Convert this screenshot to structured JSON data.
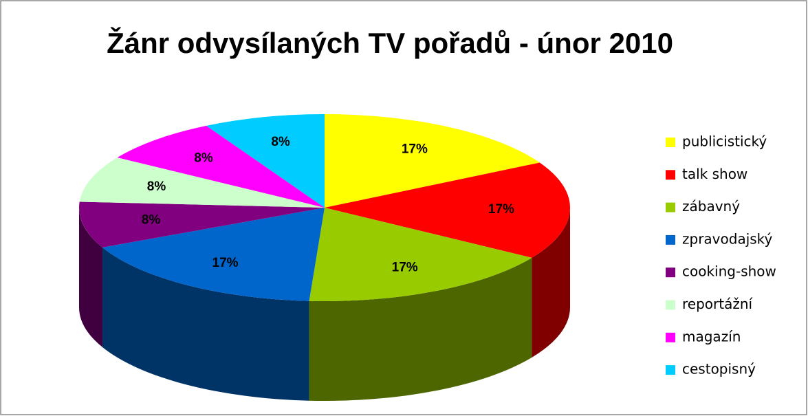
{
  "chart_data": {
    "type": "pie",
    "title": "Žánr odvysílaných TV pořadů - únor 2010",
    "categories": [
      "publicistický",
      "talk show",
      "zábavný",
      "zpravodajský",
      "cooking-show",
      "reportážní",
      "magazín",
      "cestopisný"
    ],
    "values": [
      17,
      17,
      17,
      17,
      8,
      8,
      8,
      8
    ],
    "value_labels": [
      "17%",
      "17%",
      "17%",
      "17%",
      "8%",
      "8%",
      "8%",
      "8%"
    ],
    "colors": [
      "#ffff00",
      "#ff0000",
      "#99cc00",
      "#0066cc",
      "#800080",
      "#ccffcc",
      "#ff00ff",
      "#00ccff"
    ],
    "legend": "right"
  }
}
